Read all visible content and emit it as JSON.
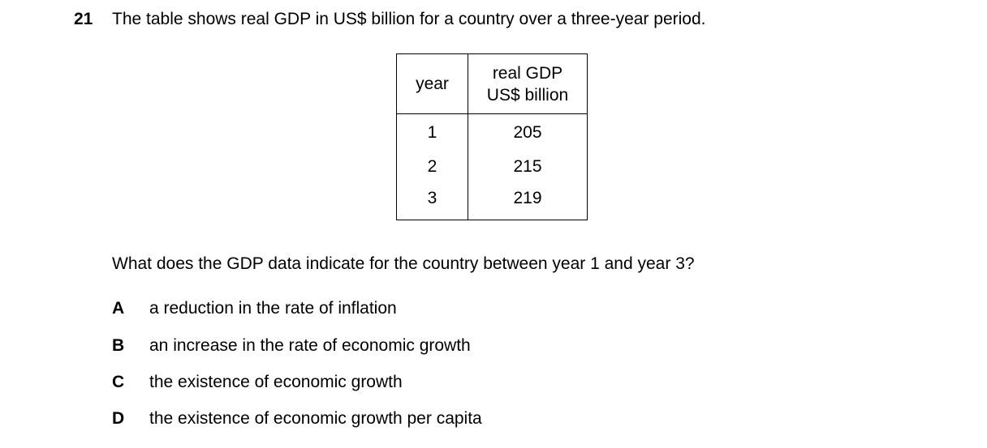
{
  "question": {
    "number": "21",
    "stem": "The table shows real GDP in US$ billion for a country over a three-year period.",
    "prompt": "What does the GDP data indicate for the country between year 1 and year 3?"
  },
  "table": {
    "headers": {
      "year": "year",
      "gdp_line1": "real GDP",
      "gdp_line2": "US$ billion"
    },
    "rows": [
      {
        "year": "1",
        "gdp": "205"
      },
      {
        "year": "2",
        "gdp": "215"
      },
      {
        "year": "3",
        "gdp": "219"
      }
    ]
  },
  "options": [
    {
      "letter": "A",
      "text": "a reduction in the rate of inflation"
    },
    {
      "letter": "B",
      "text": "an increase in the rate of economic growth"
    },
    {
      "letter": "C",
      "text": "the existence of economic growth"
    },
    {
      "letter": "D",
      "text": "the existence of economic growth per capita"
    }
  ]
}
